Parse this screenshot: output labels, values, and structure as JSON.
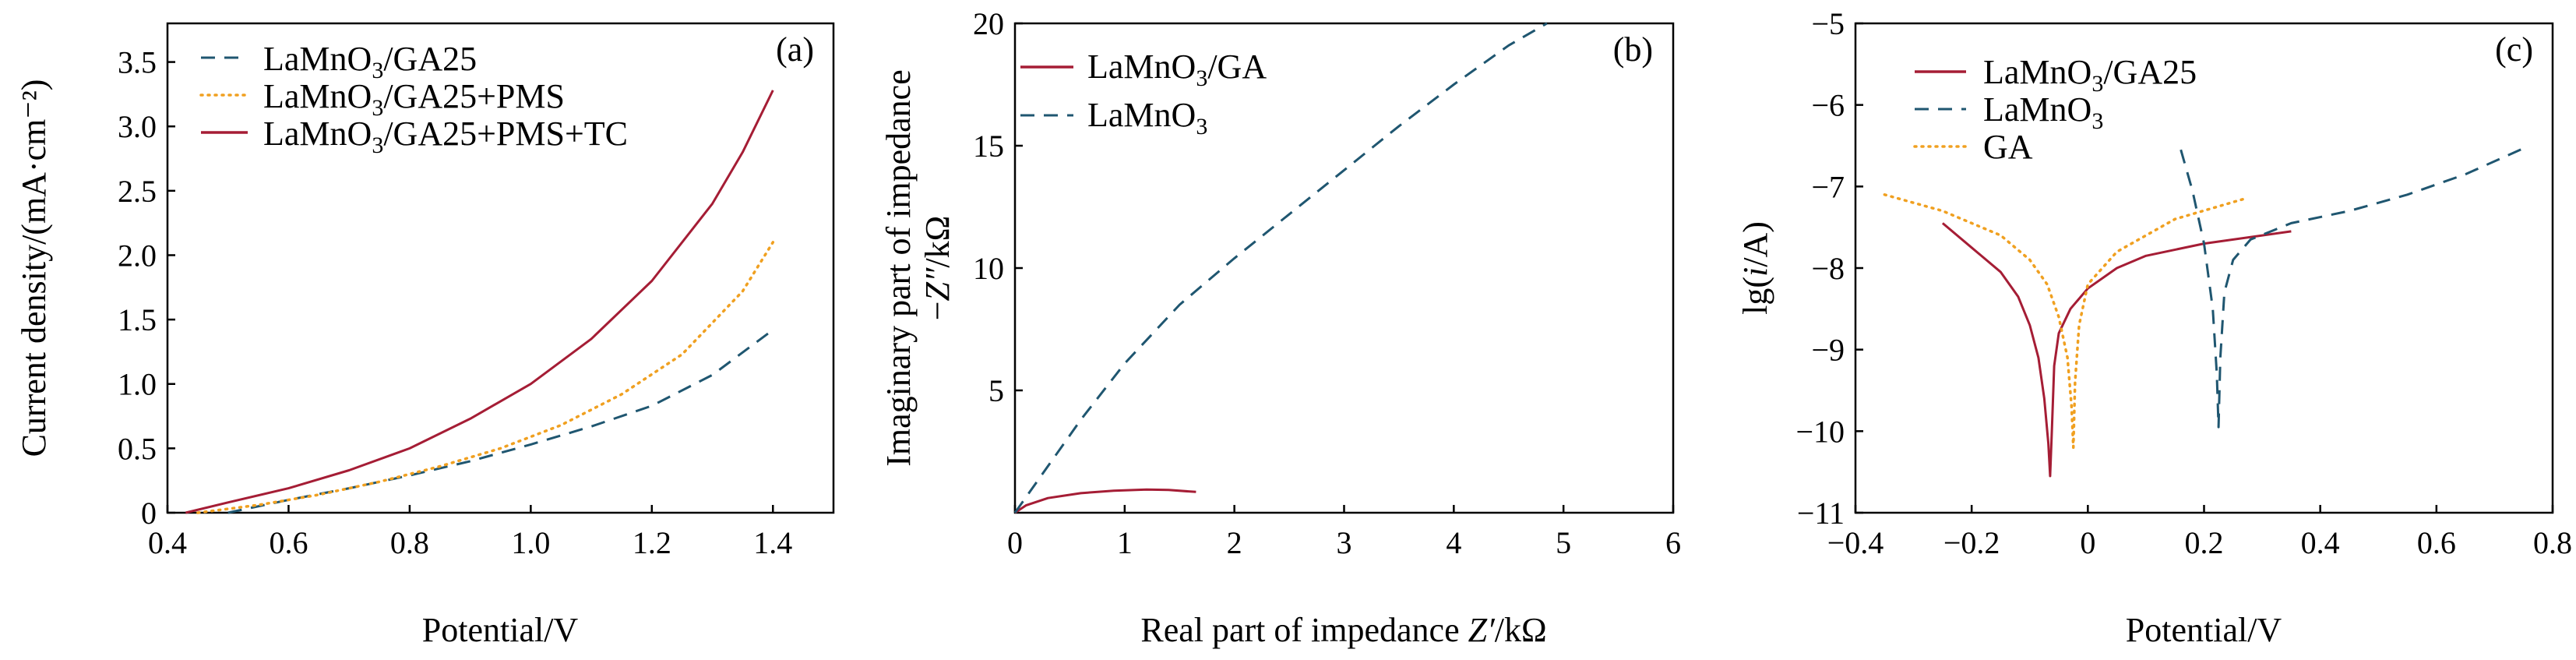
{
  "colors": {
    "red": "#a51d35",
    "blue": "#1f5670",
    "orange": "#f0a020",
    "axis": "#000000"
  },
  "chart_data": [
    {
      "panel": "(a)",
      "type": "line",
      "xlabel": "Potential/V",
      "ylabel": "Current density/(mA·cm⁻²)",
      "xlim": [
        0.4,
        1.5
      ],
      "ylim": [
        0,
        3.8
      ],
      "xticks": [
        "0.4",
        "0.6",
        "0.8",
        "1.0",
        "1.2",
        "1.4"
      ],
      "yticks": [
        "0",
        "0.5",
        "1.0",
        "1.5",
        "2.0",
        "2.5",
        "3.0",
        "3.5"
      ],
      "legend_position": "top-left",
      "series": [
        {
          "name": "LaMnO3/GA25",
          "label_main": "LaMnO",
          "label_sub": "3",
          "label_rest": "/GA25",
          "style": "dashed",
          "color": "#1f5670",
          "x": [
            0.5,
            0.6,
            0.7,
            0.8,
            0.9,
            1.0,
            1.1,
            1.2,
            1.3,
            1.4
          ],
          "y": [
            0.0,
            0.1,
            0.19,
            0.29,
            0.4,
            0.53,
            0.67,
            0.83,
            1.07,
            1.42
          ]
        },
        {
          "name": "LaMnO3/GA25+PMS",
          "label_main": "LaMnO",
          "label_sub": "3",
          "label_rest": "/GA25+PMS",
          "style": "dotted",
          "color": "#f0a020",
          "x": [
            0.45,
            0.55,
            0.65,
            0.75,
            0.85,
            0.95,
            1.05,
            1.15,
            1.25,
            1.35,
            1.4
          ],
          "y": [
            0.0,
            0.06,
            0.14,
            0.24,
            0.36,
            0.5,
            0.68,
            0.92,
            1.23,
            1.72,
            2.1
          ]
        },
        {
          "name": "LaMnO3/GA25+PMS+TC",
          "label_main": "LaMnO",
          "label_sub": "3",
          "label_rest": "/GA25+PMS+TC",
          "style": "solid",
          "color": "#a51d35",
          "x": [
            0.43,
            0.5,
            0.6,
            0.7,
            0.8,
            0.9,
            1.0,
            1.1,
            1.2,
            1.3,
            1.35,
            1.4
          ],
          "y": [
            0.0,
            0.08,
            0.19,
            0.33,
            0.5,
            0.73,
            1.0,
            1.35,
            1.8,
            2.4,
            2.8,
            3.28
          ]
        }
      ]
    },
    {
      "panel": "(b)",
      "type": "line",
      "xlabel_main": "Real part of impedance ",
      "xlabel_italic": "Z′",
      "xlabel_rest": "/kΩ",
      "ylabel_line1": "Imaginary part of impedance",
      "ylabel_line2_prefix": "−",
      "ylabel_line2_italic": "Z″",
      "ylabel_line2_rest": "/kΩ",
      "xlim": [
        0,
        6
      ],
      "ylim": [
        0,
        20
      ],
      "xticks": [
        "0",
        "1",
        "2",
        "3",
        "4",
        "5",
        "6"
      ],
      "yticks": [
        "5",
        "10",
        "15",
        "20"
      ],
      "legend_position": "top-left",
      "series": [
        {
          "name": "LaMnO3/GA",
          "label_main": "LaMnO",
          "label_sub": "3",
          "label_rest": "/GA",
          "style": "solid",
          "color": "#a51d35",
          "x": [
            0.0,
            0.1,
            0.3,
            0.6,
            0.9,
            1.2,
            1.4,
            1.65
          ],
          "y": [
            0.0,
            0.3,
            0.6,
            0.8,
            0.9,
            0.95,
            0.93,
            0.85
          ]
        },
        {
          "name": "LaMnO3",
          "label_main": "LaMnO",
          "label_sub": "3",
          "label_rest": "",
          "style": "dashed",
          "color": "#1f5670",
          "x": [
            0.0,
            0.3,
            0.6,
            1.0,
            1.5,
            2.0,
            2.5,
            3.0,
            3.5,
            4.0,
            4.5,
            4.85
          ],
          "y": [
            0.0,
            1.9,
            3.8,
            6.1,
            8.5,
            10.4,
            12.2,
            14.0,
            15.8,
            17.5,
            19.1,
            20.0
          ]
        }
      ]
    },
    {
      "panel": "(c)",
      "type": "line",
      "xlabel": "Potential/V",
      "ylabel_prefix": "lg(",
      "ylabel_italic": "i",
      "ylabel_rest": "/A)",
      "xlim": [
        -0.4,
        0.8
      ],
      "ylim": [
        -11,
        -5
      ],
      "xticks": [
        "−0.4",
        "−0.2",
        "0",
        "0.2",
        "0.4",
        "0.6",
        "0.8"
      ],
      "yticks": [
        "−11",
        "−10",
        "−9",
        "−8",
        "−7",
        "−6",
        "−5"
      ],
      "legend_position": "top-left",
      "series": [
        {
          "name": "LaMnO3/GA25",
          "label_main": "LaMnO",
          "label_sub": "3",
          "label_rest": "/GA25",
          "style": "solid",
          "color": "#a51d35",
          "x": [
            -0.25,
            -0.2,
            -0.15,
            -0.12,
            -0.1,
            -0.085,
            -0.075,
            -0.068,
            -0.065,
            -0.062,
            -0.058,
            -0.05,
            -0.03,
            0.0,
            0.05,
            0.1,
            0.2,
            0.35
          ],
          "y": [
            -7.45,
            -7.75,
            -8.05,
            -8.35,
            -8.7,
            -9.1,
            -9.6,
            -10.15,
            -10.55,
            -10.0,
            -9.2,
            -8.8,
            -8.5,
            -8.25,
            -8.0,
            -7.85,
            -7.7,
            -7.55
          ]
        },
        {
          "name": "LaMnO3",
          "label_main": "LaMnO",
          "label_sub": "3",
          "label_rest": "",
          "style": "dashed",
          "color": "#1f5670",
          "x": [
            0.16,
            0.18,
            0.2,
            0.215,
            0.222,
            0.225,
            0.228,
            0.235,
            0.25,
            0.28,
            0.35,
            0.45,
            0.55,
            0.65,
            0.76
          ],
          "y": [
            -6.55,
            -7.05,
            -7.7,
            -8.5,
            -9.3,
            -9.95,
            -9.1,
            -8.3,
            -7.9,
            -7.65,
            -7.45,
            -7.3,
            -7.1,
            -6.85,
            -6.5
          ]
        },
        {
          "name": "GA",
          "label_main": "GA",
          "label_sub": "",
          "label_rest": "",
          "style": "dotted",
          "color": "#f0a020",
          "x": [
            -0.35,
            -0.25,
            -0.15,
            -0.1,
            -0.07,
            -0.05,
            -0.035,
            -0.028,
            -0.025,
            -0.022,
            -0.015,
            0.0,
            0.05,
            0.15,
            0.27
          ],
          "y": [
            -7.1,
            -7.3,
            -7.6,
            -7.9,
            -8.2,
            -8.6,
            -9.1,
            -9.7,
            -10.2,
            -9.4,
            -8.7,
            -8.2,
            -7.8,
            -7.4,
            -7.15
          ]
        }
      ]
    }
  ]
}
